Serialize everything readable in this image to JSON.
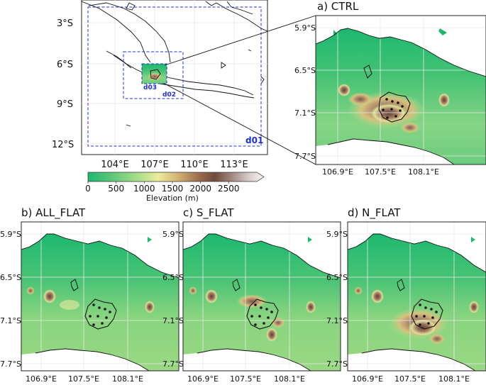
{
  "overview": {
    "lat_labels": [
      "3°S",
      "6°S",
      "9°S",
      "12°S"
    ],
    "lon_labels": [
      "104°E",
      "107°E",
      "110°E",
      "113°E"
    ],
    "domains": [
      "d01",
      "d02",
      "d03"
    ]
  },
  "colorbar": {
    "ticks": [
      "0",
      "500",
      "1000",
      "1500",
      "2000",
      "2500"
    ],
    "label": "Elevation (m)",
    "range": [
      0,
      3000
    ],
    "colors": [
      "#1db86f",
      "#58c878",
      "#9fdc88",
      "#e8e89a",
      "#c9a66a",
      "#9c6f4a",
      "#6e4a3a",
      "#a48a84",
      "#d8cfcc",
      "#f5f2f2"
    ]
  },
  "panels": [
    {
      "id": "ctrl",
      "title": "a) CTRL",
      "lat_labels": [
        "5.9°S",
        "6.5°S",
        "7.1°S",
        "7.7°S"
      ],
      "lon_labels": [
        "106.9°E",
        "107.5°E",
        "108.1°E"
      ],
      "terrain": "full"
    },
    {
      "id": "all_flat",
      "title": "b) ALL_FLAT",
      "lat_labels": [
        "5.9°S",
        "6.5°S",
        "7.1°S",
        "7.7°S"
      ],
      "lon_labels": [
        "106.9°E",
        "107.5°E",
        "108.1°E"
      ],
      "terrain": "flat"
    },
    {
      "id": "s_flat",
      "title": "c) S_FLAT",
      "lat_labels": [
        "5.9°S",
        "6.5°S",
        "7.1°S",
        "7.7°S"
      ],
      "lon_labels": [
        "106.9°E",
        "107.5°E",
        "108.1°E"
      ],
      "terrain": "south-flat"
    },
    {
      "id": "n_flat",
      "title": "d) N_FLAT",
      "lat_labels": [
        "5.9°S",
        "6.5°S",
        "7.1°S",
        "7.7°S"
      ],
      "lon_labels": [
        "106.9°E",
        "107.5°E",
        "108.1°E"
      ],
      "terrain": "north-flat"
    }
  ],
  "colors": {
    "domain_box": "#1f2fd6",
    "coast": "#111111",
    "sea": "#ffffff"
  }
}
